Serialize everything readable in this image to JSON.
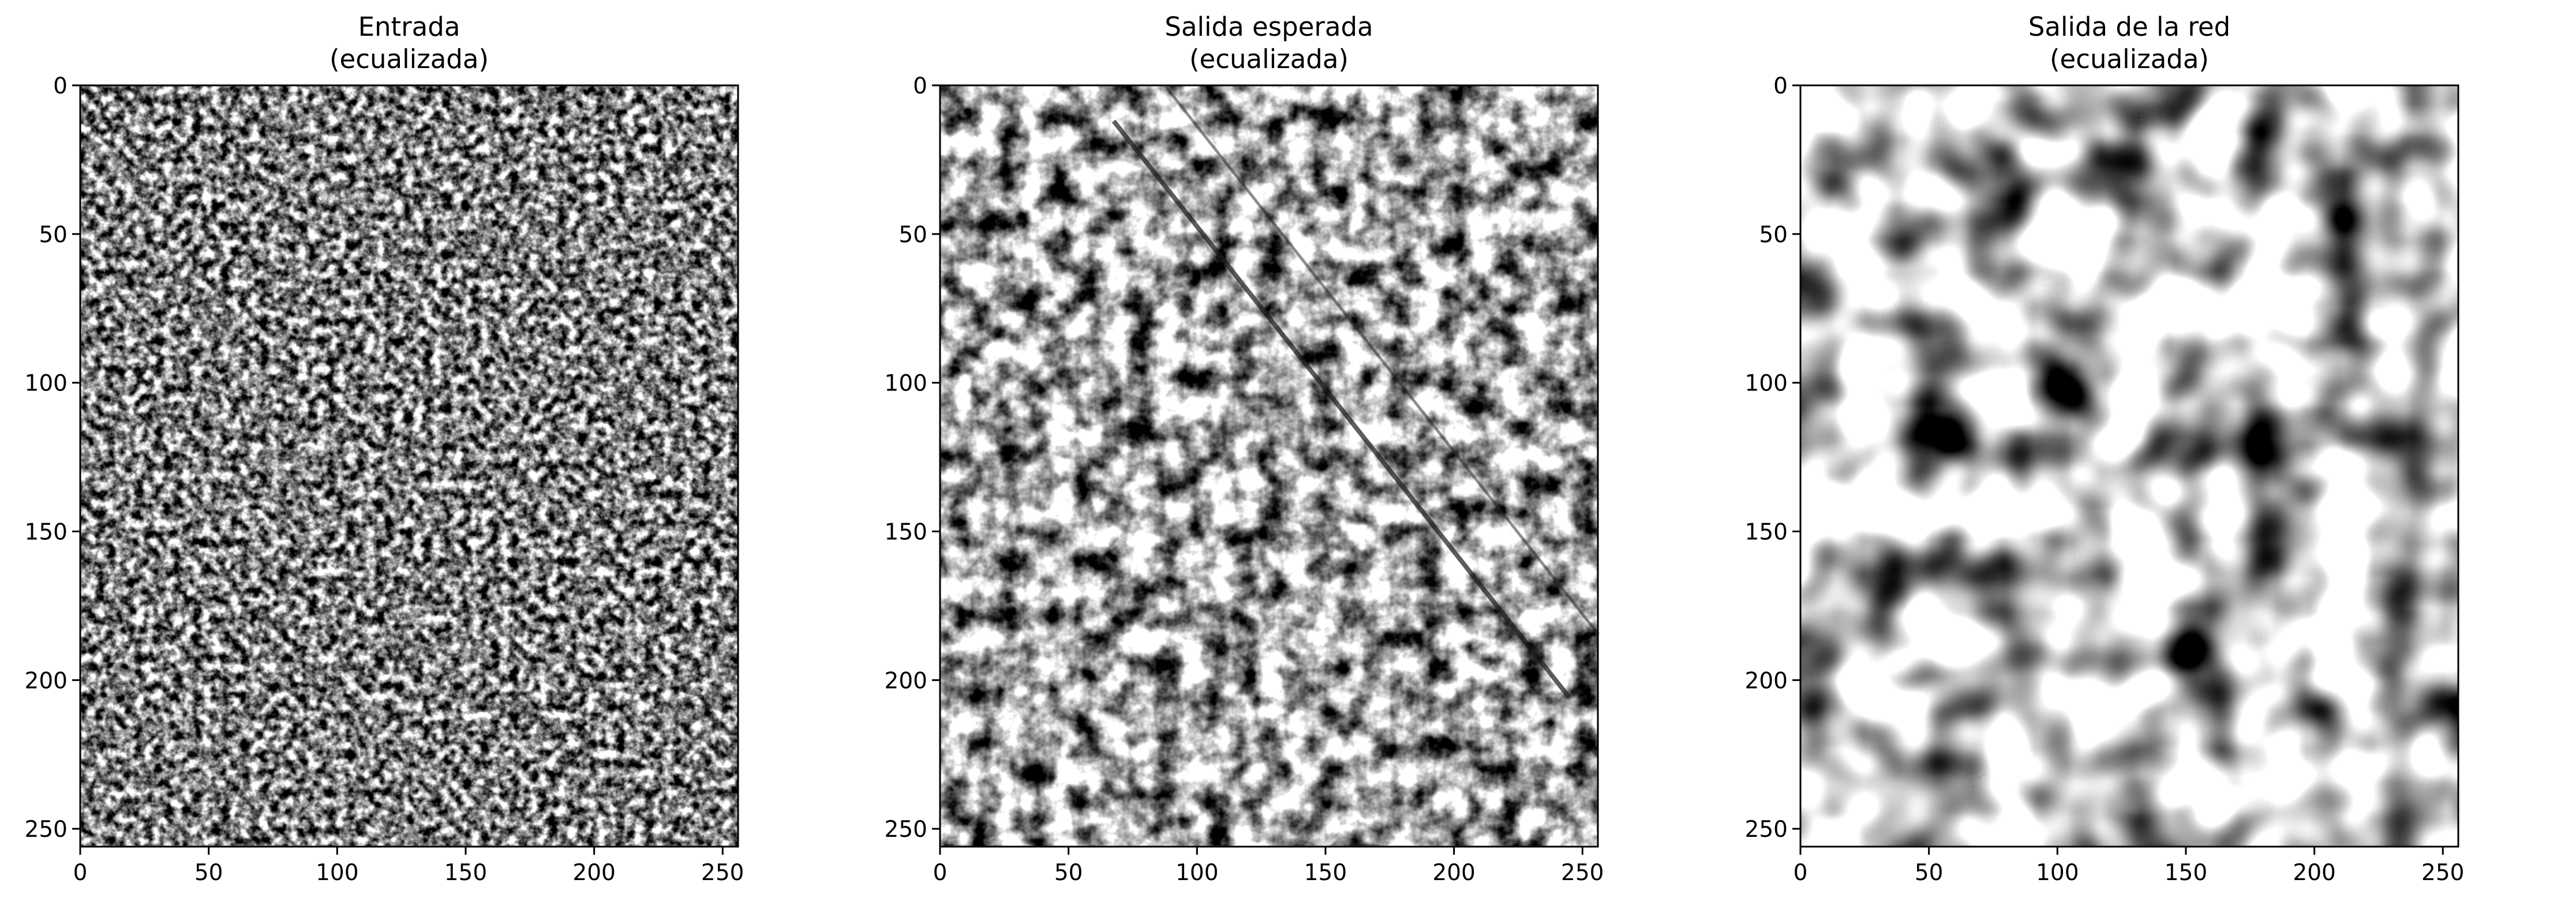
{
  "figure": {
    "panels": [
      {
        "title_line1": "Entrada",
        "title_line2": "(ecualizada)",
        "image": "noisy grayscale SAR input patch, fine speckle",
        "noise_seed": 17,
        "noise_scale": 3.5,
        "noise_contrast": 1.45
      },
      {
        "title_line1": "Salida esperada",
        "title_line2": "(ecualizada)",
        "image": "despeckled reference patch with dark blobs and diagonal lines",
        "noise_seed": 41,
        "noise_scale": 9,
        "noise_contrast": 1.35
      },
      {
        "title_line1": "Salida de la red",
        "title_line2": "(ecualizada)",
        "image": "smooth network output patch with large dark and bright blobs",
        "noise_seed": 73,
        "noise_scale": 30,
        "noise_contrast": 1.6
      }
    ]
  },
  "axes": {
    "x_ticks": [
      "0",
      "50",
      "100",
      "150",
      "200",
      "250"
    ],
    "y_ticks": [
      "0",
      "50",
      "100",
      "150",
      "200",
      "250"
    ],
    "x_range": [
      0,
      256
    ],
    "y_range": [
      0,
      256
    ],
    "y_inverted": true
  },
  "colors": {
    "colormap": "gray",
    "axis": "#000000",
    "background": "#ffffff"
  }
}
